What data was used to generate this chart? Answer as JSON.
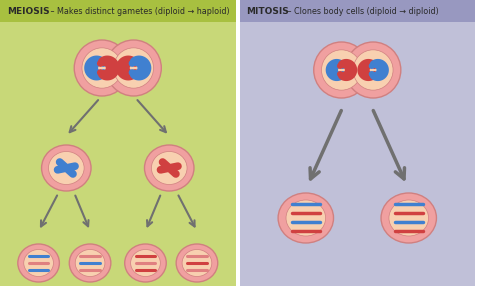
{
  "meiosis_bg": "#c8d878",
  "mitosis_bg": "#c0c0d8",
  "header_meiosis_bg": "#a8c040",
  "header_mitosis_bg": "#9898c0",
  "cell_outer_color": "#f0a0a0",
  "cell_inner_color": "#f8d0b0",
  "cell_edge_color": "#d08080",
  "blue_chrom": "#4080d0",
  "red_chrom": "#d04040",
  "pink_chrom": "#e08080",
  "arrow_color": "#707070",
  "title_left_bold": "MEIOSIS",
  "title_left_rest": " – Makes distinct gametes (diploid → haploid)",
  "title_right_bold": "MITOSIS",
  "title_right_rest": " – Clones body cells (diploid → diploid)",
  "fig_width": 4.8,
  "fig_height": 2.86
}
